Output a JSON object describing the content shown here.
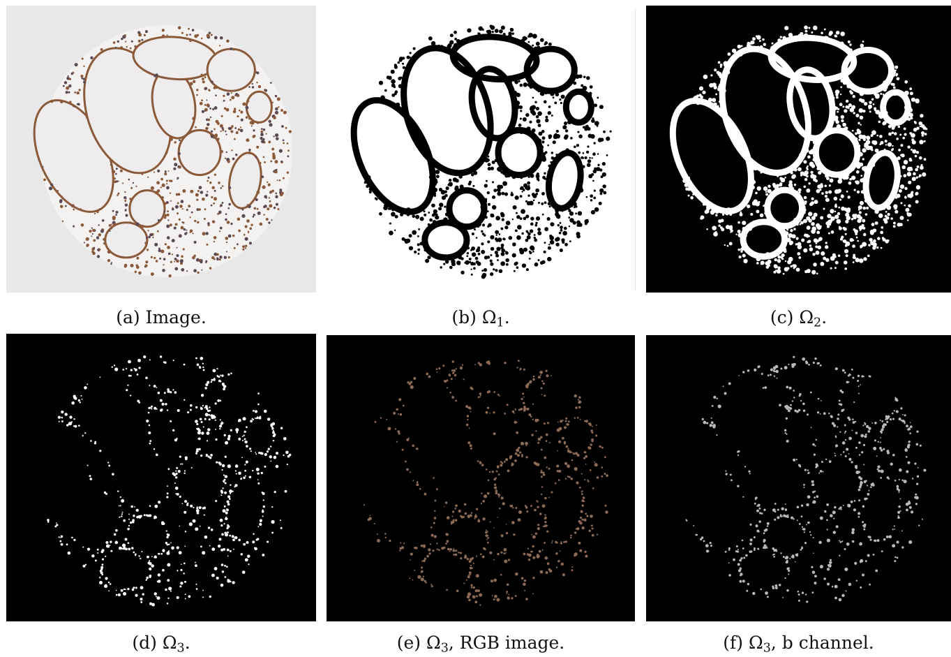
{
  "figure": {
    "panels": [
      {
        "id": "a",
        "label": "(a)",
        "caption": "Image.",
        "symbol": "",
        "subscript": "",
        "style": "histology",
        "colors": {
          "bg": "#e8e8e9",
          "tissue": "#f4f2f0",
          "stain": "#8a5a3a"
        }
      },
      {
        "id": "b",
        "label": "(b)",
        "caption": ".",
        "symbol": "Ω",
        "subscript": "1",
        "style": "mask-dark-on-light",
        "colors": {
          "bg": "#ffffff",
          "fg": "#000000"
        }
      },
      {
        "id": "c",
        "label": "(c)",
        "caption": ".",
        "symbol": "Ω",
        "subscript": "2",
        "style": "mask-light-on-dark",
        "colors": {
          "bg": "#000000",
          "fg": "#ffffff"
        }
      },
      {
        "id": "d",
        "label": "(d)",
        "caption": ".",
        "symbol": "Ω",
        "subscript": "3",
        "style": "sparse-white",
        "colors": {
          "bg": "#000000",
          "fg": "#ffffff"
        }
      },
      {
        "id": "e",
        "label": "(e)",
        "caption": ", RGB image.",
        "symbol": "Ω",
        "subscript": "3",
        "style": "sparse-rgb",
        "colors": {
          "bg": "#000000",
          "fg": "#8c6a55"
        }
      },
      {
        "id": "f",
        "label": "(f)",
        "caption": ", b channel.",
        "symbol": "Ω",
        "subscript": "3",
        "style": "sparse-gray",
        "colors": {
          "bg": "#000000",
          "fg": "#b9b9b9"
        }
      }
    ]
  }
}
